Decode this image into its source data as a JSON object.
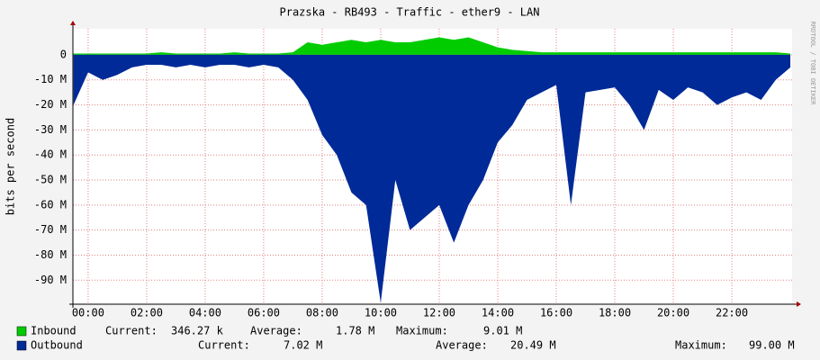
{
  "chart_data": {
    "type": "area",
    "title": "Prazska - RB493 - Traffic - ether9 - LAN",
    "y_label": "bits per second",
    "watermark": "RRDTOOL / TOBI OETIKER",
    "x": [
      -0.5,
      0,
      0.5,
      1,
      1.5,
      2,
      2.5,
      3,
      3.5,
      4,
      4.5,
      5,
      5.5,
      6,
      6.5,
      7,
      7.5,
      8,
      8.5,
      9,
      9.5,
      10,
      10.5,
      11,
      11.5,
      12,
      12.5,
      13,
      13.5,
      14,
      14.5,
      15,
      15.5,
      16,
      16.5,
      17,
      17.5,
      18,
      18.5,
      19,
      19.5,
      20,
      20.5,
      21,
      21.5,
      22,
      22.5,
      23,
      23.5,
      24
    ],
    "series": [
      {
        "name": "Inbound",
        "color": "#00cc00",
        "stats": [
          "346.27 k",
          "1.78 M",
          "9.01 M"
        ],
        "values": [
          500000,
          500000,
          500000,
          500000,
          500000,
          500000,
          1000000,
          500000,
          500000,
          500000,
          500000,
          1000000,
          500000,
          500000,
          500000,
          1000000,
          5000000,
          4000000,
          5000000,
          6000000,
          5000000,
          6000000,
          5000000,
          5000000,
          6000000,
          7000000,
          6000000,
          7000000,
          5000000,
          3000000,
          2000000,
          1500000,
          1000000,
          1000000,
          1000000,
          1000000,
          1000000,
          1000000,
          1000000,
          1000000,
          1000000,
          1000000,
          1000000,
          1000000,
          1000000,
          1000000,
          1000000,
          1000000,
          1000000,
          500000
        ]
      },
      {
        "name": "Outbound",
        "color": "#002a97",
        "stats": [
          "7.02 M",
          "20.49 M",
          "99.00 M"
        ],
        "values": [
          -20000000,
          -7000000,
          -10000000,
          -8000000,
          -5000000,
          -4000000,
          -4000000,
          -5000000,
          -4000000,
          -5000000,
          -4000000,
          -4000000,
          -5000000,
          -4000000,
          -5000000,
          -10000000,
          -18000000,
          -32000000,
          -40000000,
          -55000000,
          -60000000,
          -99000000,
          -50000000,
          -70000000,
          -65000000,
          -60000000,
          -75000000,
          -60000000,
          -50000000,
          -35000000,
          -28000000,
          -18000000,
          -15000000,
          -12000000,
          -60000000,
          -15000000,
          -14000000,
          -13000000,
          -20000000,
          -30000000,
          -14000000,
          -18000000,
          -13000000,
          -15000000,
          -20000000,
          -17000000,
          -15000000,
          -18000000,
          -10000000,
          -5000000
        ]
      }
    ],
    "legend_labels": [
      "Current:",
      "Average:",
      "Maximum:"
    ],
    "xlim": [
      -0.52,
      24.06
    ],
    "xticks": [
      {
        "value": 0,
        "label": "00:00"
      },
      {
        "value": 2,
        "label": "02:00"
      },
      {
        "value": 4,
        "label": "04:00"
      },
      {
        "value": 6,
        "label": "06:00"
      },
      {
        "value": 8,
        "label": "08:00"
      },
      {
        "value": 10,
        "label": "10:00"
      },
      {
        "value": 12,
        "label": "12:00"
      },
      {
        "value": 14,
        "label": "14:00"
      },
      {
        "value": 16,
        "label": "16:00"
      },
      {
        "value": 18,
        "label": "18:00"
      },
      {
        "value": 20,
        "label": "20:00"
      },
      {
        "value": 22,
        "label": "22:00"
      }
    ],
    "ylim": [
      -99600000,
      10400000
    ],
    "yticks": [
      0,
      {
        "value": -10000000,
        "label": "-10 M"
      },
      {
        "value": -20000000,
        "label": "-20 M"
      },
      {
        "value": -30000000,
        "label": "-30 M"
      },
      {
        "value": -40000000,
        "label": "-40 M"
      },
      {
        "value": -50000000,
        "label": "-50 M"
      },
      {
        "value": -60000000,
        "label": "-60 M"
      },
      {
        "value": -70000000,
        "label": "-70 M"
      },
      {
        "value": -80000000,
        "label": "-80 M"
      },
      {
        "value": -90000000,
        "label": "-90 M"
      }
    ],
    "grid": true
  }
}
